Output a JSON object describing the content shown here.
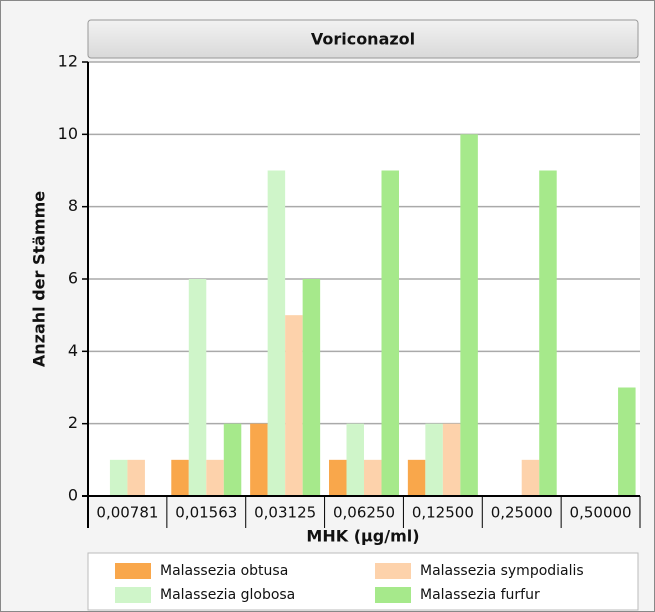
{
  "chart_data": {
    "type": "bar",
    "title": "Voriconazol",
    "x_label": "MHK (µg/ml)",
    "y_label": "Anzahl der Stämme",
    "categories": [
      "0,00781",
      "0,01563",
      "0,03125",
      "0,06250",
      "0,12500",
      "0,25000",
      "0,50000"
    ],
    "series": [
      {
        "name": "Malassezia obtusa",
        "color": "#f9a74b",
        "values": [
          0,
          1,
          2,
          1,
          1,
          0,
          0
        ]
      },
      {
        "name": "Malassezia globosa",
        "color": "#cff5c9",
        "values": [
          1,
          6,
          9,
          2,
          2,
          0,
          0
        ]
      },
      {
        "name": "Malassezia sympodialis",
        "color": "#fdd2ab",
        "values": [
          1,
          1,
          5,
          1,
          2,
          1,
          0
        ]
      },
      {
        "name": "Malassezia furfur",
        "color": "#a6e98b",
        "values": [
          0,
          2,
          6,
          9,
          10,
          9,
          3
        ]
      }
    ],
    "ylim": [
      0,
      12
    ],
    "yticks": [
      0,
      2,
      4,
      6,
      8,
      10,
      12
    ],
    "grid": true
  }
}
